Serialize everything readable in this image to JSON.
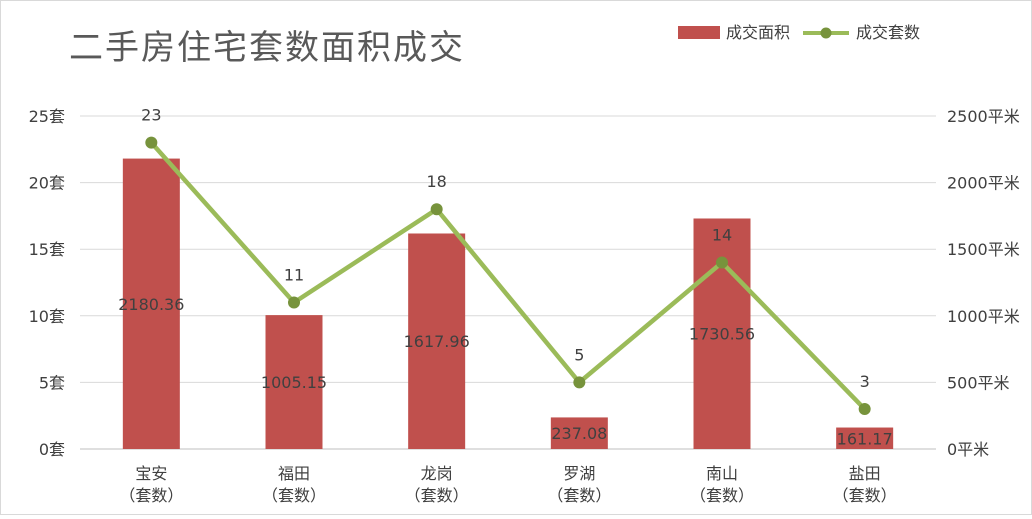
{
  "chart_data": {
    "type": "bar+line",
    "title": "二手房住宅套数面积成交",
    "categories": [
      "宝安\n（套数）",
      "福田\n（套数）",
      "龙岗\n（套数）",
      "罗湖\n（套数）",
      "南山\n（套数）",
      "盐田\n（套数）"
    ],
    "series": [
      {
        "name": "成交面积",
        "type": "bar",
        "axis": "right",
        "color": "#c0504d",
        "values": [
          2180.36,
          1005.15,
          1617.96,
          237.08,
          1730.56,
          161.17
        ],
        "labels": [
          "2180.36",
          "1005.15",
          "1617.96",
          "237.08",
          "1730.56",
          "161.17"
        ]
      },
      {
        "name": "成交套数",
        "type": "line",
        "axis": "left",
        "color": "#9bbb59",
        "marker_color": "#77933c",
        "values": [
          23,
          11,
          18,
          5,
          14,
          3
        ],
        "labels": [
          "23",
          "11",
          "18",
          "5",
          "14",
          "3"
        ]
      }
    ],
    "y_left": {
      "range": [
        0,
        25
      ],
      "ticks": [
        0,
        5,
        10,
        15,
        20,
        25
      ],
      "tick_labels": [
        "0套",
        "5套",
        "10套",
        "15套",
        "20套",
        "25套"
      ]
    },
    "y_right": {
      "range": [
        0,
        2500
      ],
      "ticks": [
        0,
        500,
        1000,
        1500,
        2000,
        2500
      ],
      "tick_labels": [
        "0平米",
        "500平米",
        "1000平米",
        "1500平米",
        "2000平米",
        "2500平米"
      ]
    },
    "grid": true,
    "legend_position": "top-right"
  }
}
